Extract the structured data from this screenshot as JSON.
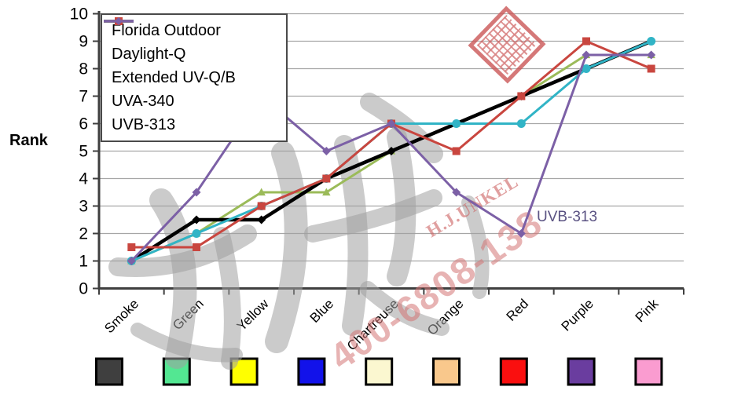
{
  "chart_data": {
    "type": "line",
    "title": "",
    "xlabel": "",
    "ylabel": "Rank",
    "ylim": [
      0,
      10
    ],
    "yticks": [
      0,
      1,
      2,
      3,
      4,
      5,
      6,
      7,
      8,
      9,
      10
    ],
    "grid": "horizontal",
    "legend_position": "top-left",
    "categories": [
      "Smoke",
      "Green",
      "Yellow",
      "Blue",
      "Chartreuse",
      "Orange",
      "Red",
      "Purple",
      "Pink"
    ],
    "series": [
      {
        "name": "Florida Outdoor",
        "color": "#000000",
        "marker": "diamond",
        "line_width": 4.5,
        "values": [
          1,
          2.5,
          2.5,
          4,
          5,
          6,
          7,
          8,
          9
        ]
      },
      {
        "name": "Daylight-Q",
        "color": "#9bbb59",
        "marker": "triangle",
        "line_width": 3,
        "values": [
          1,
          2,
          3.5,
          3.5,
          5,
          6,
          7,
          8.5,
          8.5
        ]
      },
      {
        "name": "Extended UV-Q/B",
        "color": "#31b4c6",
        "marker": "circle",
        "line_width": 3,
        "values": [
          1,
          2,
          3,
          4,
          6,
          6,
          6,
          8,
          9
        ]
      },
      {
        "name": "UVA-340",
        "color": "#c9463f",
        "marker": "square",
        "line_width": 3,
        "values": [
          1.5,
          1.5,
          3,
          4,
          6,
          5,
          7,
          9,
          8
        ]
      },
      {
        "name": "UVB-313",
        "color": "#7c60a6",
        "marker": "diamond",
        "line_width": 3,
        "values": [
          1,
          3.5,
          7,
          5,
          6,
          3.5,
          2,
          8.5,
          8.5
        ]
      }
    ],
    "annotations": [
      {
        "text": "UVB-313",
        "near_category": "Red",
        "target_series": "UVB-313",
        "color": "#5b5383"
      }
    ]
  },
  "category_swatch_colors": [
    "#3f3f3f",
    "#53e792",
    "#ffff00",
    "#1212ea",
    "#fbf7d0",
    "#f9c88c",
    "#fa0f0f",
    "#6a3d9f",
    "#fa9cd0"
  ],
  "watermarks": {
    "brand_text": "H.J.UNKEL",
    "phone_text": "400-6808-138",
    "stamp": "red-seal-stamp",
    "pink_color": "#d47474",
    "gray_color": "#a0a0a0"
  }
}
